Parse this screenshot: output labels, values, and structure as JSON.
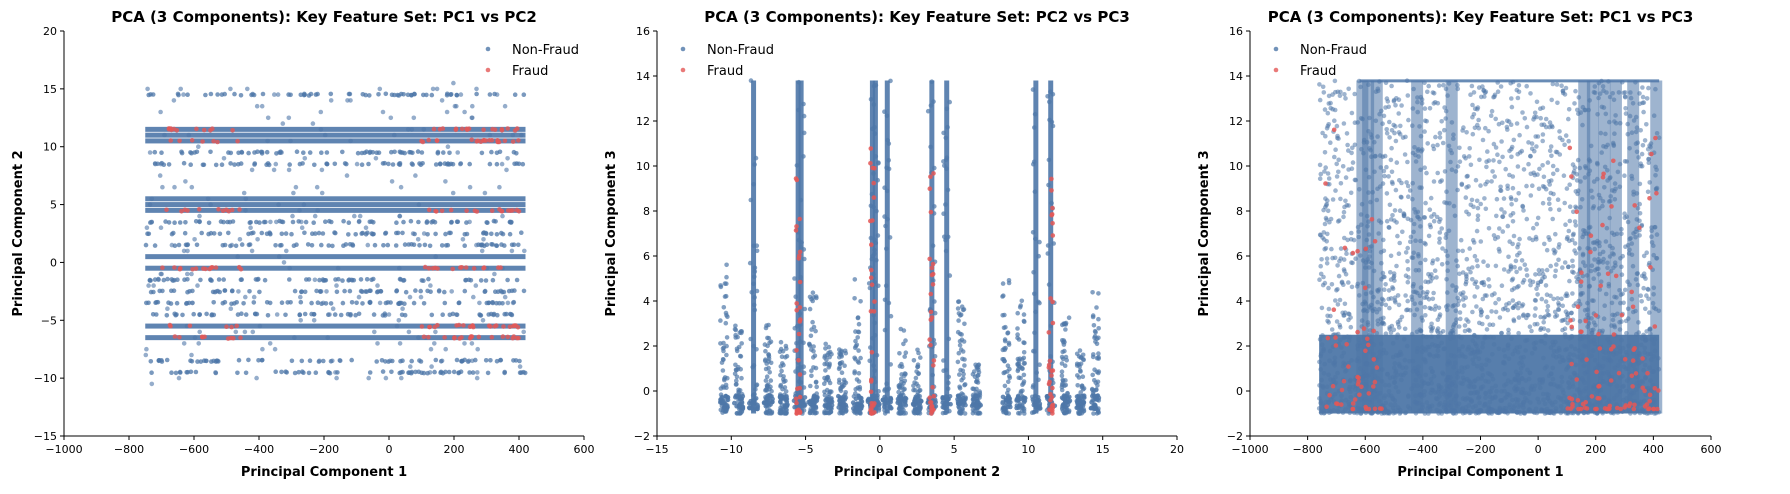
{
  "colors": {
    "non_fraud": "#4e77a8",
    "fraud": "#e45756",
    "axis": "#000000"
  },
  "chart_data": [
    {
      "type": "scatter",
      "title": "PCA (3 Components): Key Feature Set: PC1 vs PC2",
      "xlabel": "Principal Component 1",
      "ylabel": "Principal Component 2",
      "xlim": [
        -1000,
        600
      ],
      "ylim": [
        -15,
        20
      ],
      "xticks": [
        -1000,
        -800,
        -600,
        -400,
        -200,
        0,
        200,
        400,
        600
      ],
      "yticks": [
        -15,
        -10,
        -5,
        0,
        5,
        10,
        15,
        20
      ],
      "xtick_labels": [
        "−1000",
        "−800",
        "−600",
        "−400",
        "−200",
        "0",
        "200",
        "400",
        "600"
      ],
      "ytick_labels": [
        "−15",
        "−10",
        "−5",
        "0",
        "5",
        "10",
        "15",
        "20"
      ],
      "legend": {
        "position": "top-right",
        "entries": [
          "Non-Fraud",
          "Fraud"
        ]
      },
      "grid": false,
      "series": [
        {
          "name": "Non-Fraud",
          "x_range": [
            -750,
            420
          ],
          "y_bands": [
            14.5,
            11.5,
            11.0,
            10.5,
            9.5,
            8.5,
            5.5,
            5.0,
            4.5,
            3.5,
            2.5,
            1.5,
            0.5,
            -0.5,
            -1.5,
            -2.5,
            -3.5,
            -4.5,
            -5.5,
            -6.5,
            -8.5,
            -9.5
          ]
        },
        {
          "name": "Fraud",
          "x_range": [
            -750,
            420
          ],
          "y_bands": [
            11.5,
            10.5,
            4.5,
            -0.5,
            -5.5,
            -6.5
          ]
        }
      ]
    },
    {
      "type": "scatter",
      "title": "PCA (3 Components): Key Feature Set: PC2 vs PC3",
      "xlabel": "Principal Component 2",
      "ylabel": "Principal Component 3",
      "xlim": [
        -15,
        20
      ],
      "ylim": [
        -2,
        16
      ],
      "xticks": [
        -15,
        -10,
        -5,
        0,
        5,
        10,
        15,
        20
      ],
      "yticks": [
        -2,
        0,
        2,
        4,
        6,
        8,
        10,
        12,
        14,
        16
      ],
      "xtick_labels": [
        "−15",
        "−10",
        "−5",
        "0",
        "5",
        "10",
        "15",
        "20"
      ],
      "ytick_labels": [
        "−2",
        "0",
        "2",
        "4",
        "6",
        "8",
        "10",
        "12",
        "14",
        "16"
      ],
      "legend": {
        "position": "top-left",
        "entries": [
          "Non-Fraud",
          "Fraud"
        ]
      },
      "grid": false,
      "series": [
        {
          "name": "Non-Fraud",
          "x_columns": [
            -10.5,
            -9.5,
            -8.5,
            -7.5,
            -6.5,
            -5.5,
            -5.3,
            -4.5,
            -3.5,
            -2.5,
            -1.5,
            -0.5,
            -0.3,
            0.5,
            1.5,
            2.5,
            3.5,
            4.5,
            5.5,
            6.5,
            8.5,
            9.5,
            10.5,
            11.5,
            12.5,
            13.5,
            14.5
          ],
          "y_range": [
            -1,
            13.8
          ]
        },
        {
          "name": "Fraud",
          "x_columns": [
            -5.5,
            -0.5,
            3.5,
            11.5
          ],
          "y_range": [
            -1,
            13.8
          ]
        }
      ]
    },
    {
      "type": "scatter",
      "title": "PCA (3 Components): Key Feature Set: PC1 vs PC3",
      "xlabel": "Principal Component 1",
      "ylabel": "Principal Component 3",
      "xlim": [
        -1000,
        600
      ],
      "ylim": [
        -2,
        16
      ],
      "xticks": [
        -1000,
        -800,
        -600,
        -400,
        -200,
        0,
        200,
        400,
        600
      ],
      "yticks": [
        -2,
        0,
        2,
        4,
        6,
        8,
        10,
        12,
        14,
        16
      ],
      "xtick_labels": [
        "−1000",
        "−800",
        "−600",
        "−400",
        "−200",
        "0",
        "200",
        "400",
        "600"
      ],
      "ytick_labels": [
        "−2",
        "0",
        "2",
        "4",
        "6",
        "8",
        "10",
        "12",
        "14",
        "16"
      ],
      "legend": {
        "position": "top-left",
        "entries": [
          "Non-Fraud",
          "Fraud"
        ]
      },
      "grid": false,
      "series": [
        {
          "name": "Non-Fraud",
          "x_range": [
            -760,
            420
          ],
          "y_range": [
            -1,
            13.8
          ]
        },
        {
          "name": "Fraud",
          "x_range": [
            -750,
            420
          ],
          "y_range": [
            -1,
            13.8
          ]
        }
      ]
    }
  ]
}
